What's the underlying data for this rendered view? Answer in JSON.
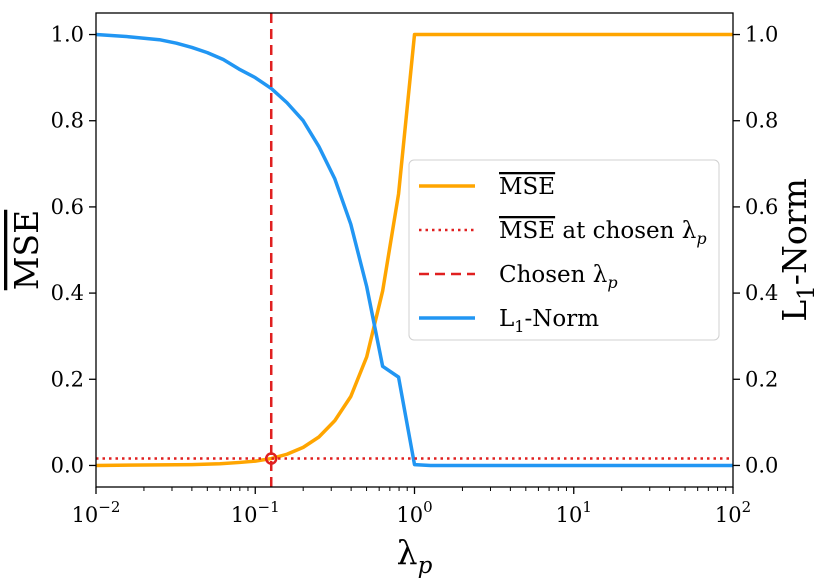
{
  "chart_data": {
    "type": "line",
    "xscale": "log",
    "xlim": [
      0.01,
      100
    ],
    "ylim_left": [
      -0.05,
      1.05
    ],
    "ylim_right": [
      -0.05,
      1.05
    ],
    "xlabel": "λ",
    "xlabel_sub": "p",
    "ylabel_left": "MSE",
    "ylabel_left_overline": true,
    "ylabel_right": "L",
    "ylabel_right_sub": "1",
    "ylabel_right_suffix": "-Norm",
    "x_ticks": [
      {
        "value": 0.01,
        "base": "10",
        "exp": "−2"
      },
      {
        "value": 0.1,
        "base": "10",
        "exp": "−1"
      },
      {
        "value": 1,
        "base": "10",
        "exp": "0"
      },
      {
        "value": 10,
        "base": "10",
        "exp": "1"
      },
      {
        "value": 100,
        "base": "10",
        "exp": "2"
      }
    ],
    "y_ticks_left": [
      "0.0",
      "0.2",
      "0.4",
      "0.6",
      "0.8",
      "1.0"
    ],
    "y_ticks_right": [
      "0.0",
      "0.2",
      "0.4",
      "0.6",
      "0.8",
      "1.0"
    ],
    "chosen_lambda": 0.126,
    "chosen_mse": 0.016,
    "series": [
      {
        "name": "MSE",
        "axis": "left",
        "color": "#FFA500",
        "style": "solid",
        "x": [
          0.01,
          0.02,
          0.04,
          0.06,
          0.08,
          0.1,
          0.126,
          0.158,
          0.2,
          0.251,
          0.316,
          0.398,
          0.501,
          0.631,
          0.794,
          1.0,
          1.26,
          1.58,
          2.0,
          5.0,
          10,
          20,
          50,
          100
        ],
        "values": [
          0.0,
          0.001,
          0.002,
          0.004,
          0.007,
          0.01,
          0.016,
          0.026,
          0.042,
          0.066,
          0.104,
          0.16,
          0.252,
          0.405,
          0.63,
          1.0,
          1.0,
          1.0,
          1.0,
          1.0,
          1.0,
          1.0,
          1.0,
          1.0
        ]
      },
      {
        "name": "L1-Norm",
        "axis": "right",
        "color": "#2196F3",
        "style": "solid",
        "x": [
          0.01,
          0.016,
          0.025,
          0.032,
          0.04,
          0.05,
          0.063,
          0.079,
          0.1,
          0.126,
          0.158,
          0.2,
          0.251,
          0.316,
          0.398,
          0.501,
          0.631,
          0.794,
          1.0,
          1.26,
          2,
          5,
          10,
          20,
          50,
          100
        ],
        "values": [
          1.0,
          0.995,
          0.988,
          0.98,
          0.97,
          0.958,
          0.942,
          0.92,
          0.9,
          0.875,
          0.842,
          0.8,
          0.74,
          0.665,
          0.56,
          0.415,
          0.23,
          0.205,
          0.002,
          0.0,
          0.0,
          0.0,
          0.0,
          0.0,
          0.0,
          0.0
        ]
      }
    ],
    "legend": {
      "position": "center-right",
      "entries": [
        {
          "key": "mse",
          "text": "MSE",
          "overline": true,
          "color": "#FFA500",
          "style": "solid"
        },
        {
          "key": "mse-chosen",
          "text": "MSE",
          "overline": true,
          "suffix": " at chosen λ",
          "sub": "p",
          "color": "#E02020",
          "style": "dotted"
        },
        {
          "key": "chosen",
          "text": "Chosen λ",
          "sub": "p",
          "color": "#E02020",
          "style": "dashed"
        },
        {
          "key": "l1",
          "text": "L",
          "sub": "1",
          "suffix": "-Norm",
          "color": "#2196F3",
          "style": "solid"
        }
      ]
    },
    "marker": {
      "color": "#E02020",
      "shape": "circle"
    }
  }
}
